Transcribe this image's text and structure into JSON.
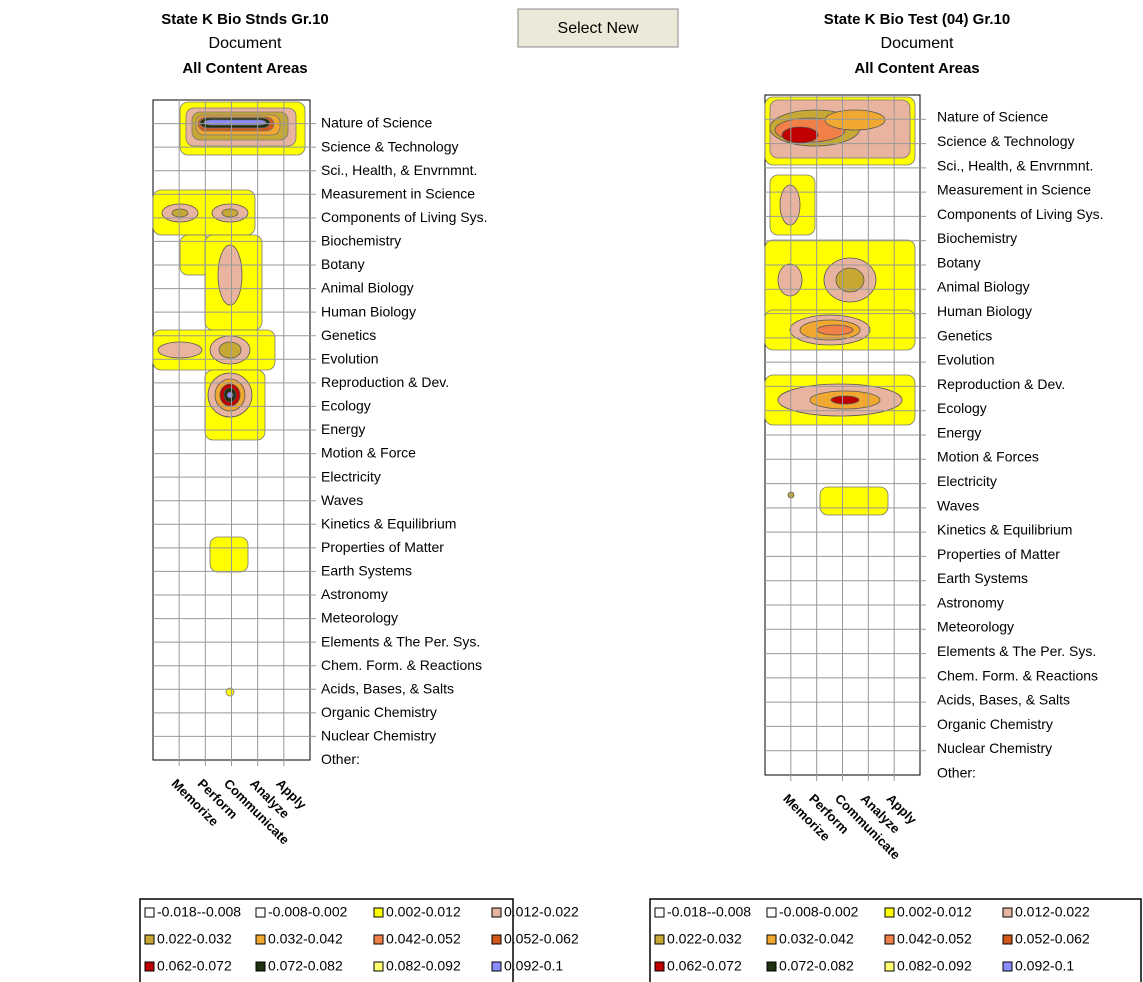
{
  "button": "Select New",
  "panels": [
    {
      "title": "State K Bio Stnds Gr.10",
      "subtitle": "Document",
      "area": "All Content Areas",
      "rows": [
        "Nature of Science",
        "Science & Technology",
        "Sci., Health, & Envrnmnt.",
        "Measurement in Science",
        "Components of Living Sys.",
        "Biochemistry",
        "Botany",
        "Animal Biology",
        "Human Biology",
        "Genetics",
        "Evolution",
        "Reproduction & Dev.",
        "Ecology",
        "Energy",
        "Motion & Force",
        "Electricity",
        "Waves",
        "Kinetics & Equilibrium",
        "Properties of Matter",
        "Earth Systems",
        "Astronomy",
        "Meteorology",
        "Elements & The Per. Sys.",
        "Chem. Form. & Reactions",
        "Acids, Bases, & Salts",
        "Organic Chemistry",
        "Nuclear Chemistry",
        "Other:"
      ],
      "columns": [
        "Memorize",
        "Perform",
        "Communicate",
        "Analyze",
        "Apply"
      ]
    },
    {
      "title": "State K Bio Test (04) Gr.10",
      "subtitle": "Document",
      "area": "All Content Areas",
      "rows": [
        "Nature of Science",
        "Science & Technology",
        "Sci., Health, & Envrnmnt.",
        "Measurement in Science",
        "Components of Living Sys.",
        "Biochemistry",
        "Botany",
        "Animal Biology",
        "Human Biology",
        "Genetics",
        "Evolution",
        "Reproduction & Dev.",
        "Ecology",
        "Energy",
        "Motion & Forces",
        "Electricity",
        "Waves",
        "Kinetics & Equilibrium",
        "Properties of Matter",
        "Earth Systems",
        "Astronomy",
        "Meteorology",
        "Elements & The Per. Sys.",
        "Chem. Form. & Reactions",
        "Acids, Bases, & Salts",
        "Organic Chemistry",
        "Nuclear Chemistry",
        "Other:"
      ],
      "columns": [
        "Memorize",
        "Perform",
        "Communicate",
        "Analyze",
        "Apply"
      ]
    }
  ],
  "legend": [
    {
      "label": "-0.018--0.008",
      "color": "#ffffff"
    },
    {
      "label": "-0.008-0.002",
      "color": "#ffffff"
    },
    {
      "label": "0.002-0.012",
      "color": "#ffff00"
    },
    {
      "label": "0.012-0.022",
      "color": "#e8b4a0"
    },
    {
      "label": "0.022-0.032",
      "color": "#c8a834"
    },
    {
      "label": "0.032-0.042",
      "color": "#f0a830"
    },
    {
      "label": "0.042-0.052",
      "color": "#f08048"
    },
    {
      "label": "0.052-0.062",
      "color": "#d05818"
    },
    {
      "label": "0.062-0.072",
      "color": "#c00000"
    },
    {
      "label": "0.072-0.082",
      "color": "#203010"
    },
    {
      "label": "0.082-0.092",
      "color": "#ffff70"
    },
    {
      "label": "0.092-0.1",
      "color": "#8c8cff"
    }
  ]
}
